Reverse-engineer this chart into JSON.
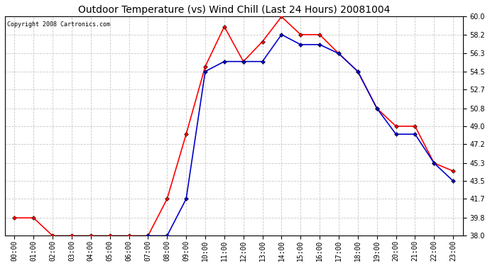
{
  "title": "Outdoor Temperature (vs) Wind Chill (Last 24 Hours) 20081004",
  "copyright": "Copyright 2008 Cartronics.com",
  "hours": [
    "00:00",
    "01:00",
    "02:00",
    "03:00",
    "04:00",
    "05:00",
    "06:00",
    "07:00",
    "08:00",
    "09:00",
    "10:00",
    "11:00",
    "12:00",
    "13:00",
    "14:00",
    "15:00",
    "16:00",
    "17:00",
    "18:00",
    "19:00",
    "20:00",
    "21:00",
    "22:00",
    "23:00"
  ],
  "temp": [
    39.8,
    39.8,
    38.0,
    38.0,
    38.0,
    38.0,
    38.0,
    38.0,
    41.7,
    48.2,
    55.0,
    59.0,
    55.5,
    57.5,
    60.0,
    58.2,
    58.2,
    56.3,
    54.5,
    50.8,
    49.0,
    49.0,
    45.3,
    44.5
  ],
  "windchill": [
    null,
    null,
    null,
    null,
    null,
    null,
    null,
    38.0,
    38.0,
    41.7,
    54.5,
    55.5,
    55.5,
    55.5,
    58.2,
    57.2,
    57.2,
    56.3,
    54.5,
    50.8,
    48.2,
    48.2,
    45.3,
    43.5
  ],
  "temp_color": "#ff0000",
  "windchill_color": "#0000cc",
  "ylim_min": 38.0,
  "ylim_max": 60.0,
  "yticks": [
    38.0,
    39.8,
    41.7,
    43.5,
    45.3,
    47.2,
    49.0,
    50.8,
    52.7,
    54.5,
    56.3,
    58.2,
    60.0
  ],
  "bg_color": "#ffffff",
  "plot_bg": "#ffffff",
  "outer_bg": "#ffffff",
  "grid_color": "#c8c8c8",
  "markersize": 3,
  "linewidth": 1.2,
  "title_fontsize": 10,
  "tick_fontsize": 7,
  "copyright_fontsize": 6
}
